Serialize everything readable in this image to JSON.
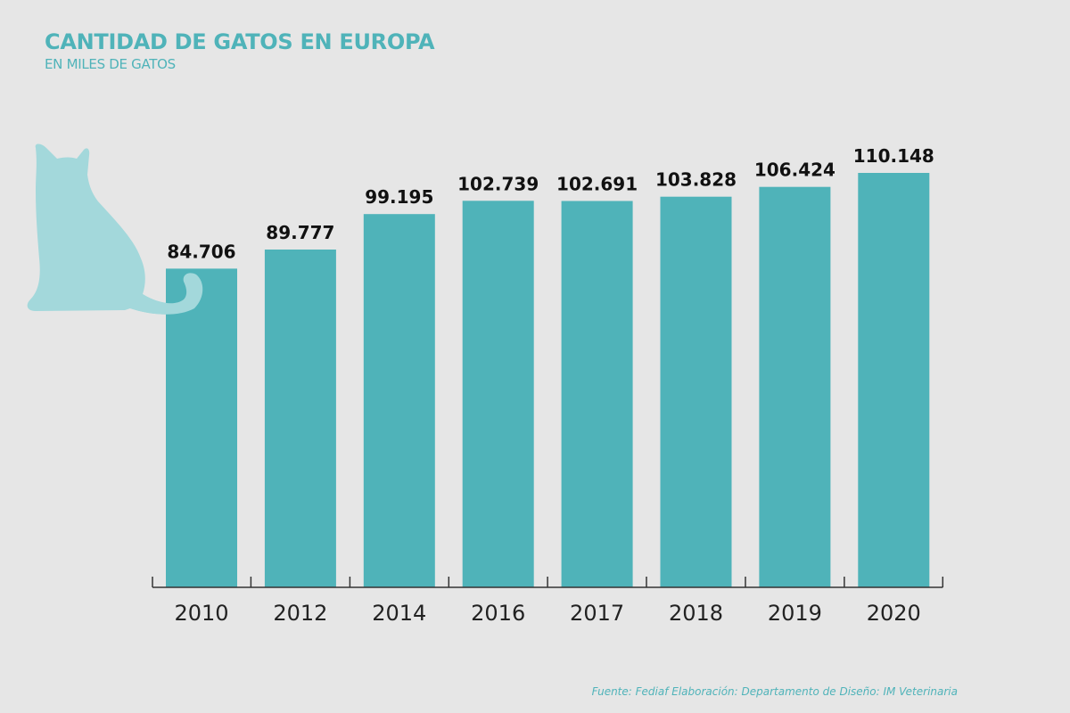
{
  "header": {
    "title": "CANTIDAD DE GATOS EN EUROPA",
    "subtitle": "EN MILES DE GATOS"
  },
  "footer": {
    "source": "Fuente: Fediaf  Elaboración: Departamento de Diseño: IM Veterinaria"
  },
  "colors": {
    "background": "#e6e6e6",
    "bar": "#4fb3b9",
    "cat_silhouette": "#a3d8db",
    "title": "#4fb3b9",
    "axis": "#333333"
  },
  "decoration": {
    "icon": "cat-silhouette-icon"
  },
  "chart_data": {
    "type": "bar",
    "title": "CANTIDAD DE GATOS EN EUROPA",
    "subtitle": "EN MILES DE GATOS",
    "xlabel": "",
    "ylabel": "",
    "categories": [
      "2010",
      "2012",
      "2014",
      "2016",
      "2017",
      "2018",
      "2019",
      "2020"
    ],
    "values": [
      84706,
      89777,
      99195,
      102739,
      102691,
      103828,
      106424,
      110148
    ],
    "value_labels": [
      "84.706",
      "89.777",
      "99.195",
      "102.739",
      "102.691",
      "103.828",
      "106.424",
      "110.148"
    ],
    "ylim": [
      0,
      110148
    ],
    "grid": false,
    "legend": "none",
    "units": "miles de gatos"
  }
}
